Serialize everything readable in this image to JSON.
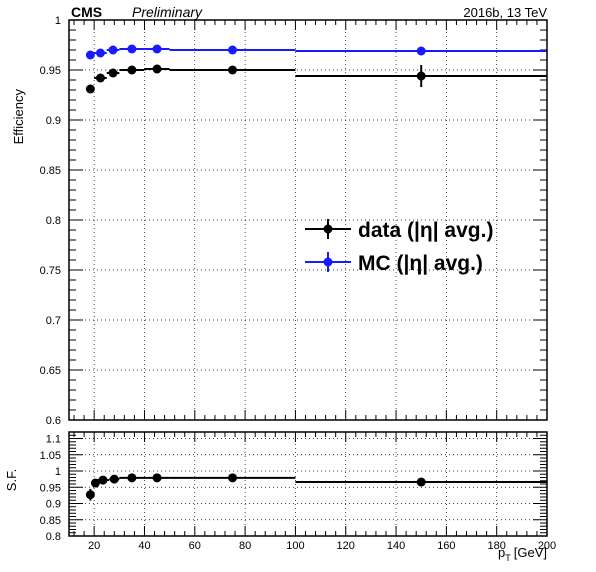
{
  "header": {
    "experiment": "CMS",
    "status": "Preliminary",
    "run_info": "2016b, 13 TeV"
  },
  "colors": {
    "data": "#000000",
    "mc": "#1a1aff",
    "grid": "#000000"
  },
  "chart_data": [
    {
      "type": "scatter",
      "panel": "top",
      "ylabel": "Efficiency",
      "xlim": [
        10,
        200
      ],
      "ylim": [
        0.6,
        1.0
      ],
      "y_ticks": [
        "0.6",
        "0.65",
        "0.7",
        "0.75",
        "0.8",
        "0.85",
        "0.9",
        "0.95",
        "1"
      ],
      "grid": true,
      "legend_position": "center-right",
      "series": [
        {
          "name": "data (|η| avg.)",
          "points": [
            {
              "x": 18.5,
              "xlo": 17,
              "xhi": 20,
              "y": 0.931,
              "yerr": 0.003
            },
            {
              "x": 22.5,
              "xlo": 20,
              "xhi": 25,
              "y": 0.942,
              "yerr": 0.003
            },
            {
              "x": 27.5,
              "xlo": 25,
              "xhi": 30,
              "y": 0.947,
              "yerr": 0.002
            },
            {
              "x": 35,
              "xlo": 30,
              "xhi": 40,
              "y": 0.95,
              "yerr": 0.002
            },
            {
              "x": 45,
              "xlo": 40,
              "xhi": 50,
              "y": 0.951,
              "yerr": 0.002
            },
            {
              "x": 75,
              "xlo": 50,
              "xhi": 100,
              "y": 0.95,
              "yerr": 0.002
            },
            {
              "x": 150,
              "xlo": 100,
              "xhi": 200,
              "y": 0.944,
              "yerr": 0.011
            }
          ]
        },
        {
          "name": "MC (|η| avg.)",
          "points": [
            {
              "x": 18.5,
              "xlo": 17,
              "xhi": 20,
              "y": 0.965,
              "yerr": 0.001
            },
            {
              "x": 22.5,
              "xlo": 20,
              "xhi": 25,
              "y": 0.967,
              "yerr": 0.001
            },
            {
              "x": 27.5,
              "xlo": 25,
              "xhi": 30,
              "y": 0.97,
              "yerr": 0.001
            },
            {
              "x": 35,
              "xlo": 30,
              "xhi": 40,
              "y": 0.971,
              "yerr": 0.001
            },
            {
              "x": 45,
              "xlo": 40,
              "xhi": 50,
              "y": 0.971,
              "yerr": 0.001
            },
            {
              "x": 75,
              "xlo": 50,
              "xhi": 100,
              "y": 0.97,
              "yerr": 0.001
            },
            {
              "x": 150,
              "xlo": 100,
              "xhi": 200,
              "y": 0.969,
              "yerr": 0.001
            }
          ]
        }
      ]
    },
    {
      "type": "scatter",
      "panel": "bottom",
      "ylabel": "S.F.",
      "xlabel_main": "p",
      "xlabel_sub": "T",
      "xlabel_unit": "[GeV]",
      "xlim": [
        10,
        200
      ],
      "ylim": [
        0.8,
        1.12
      ],
      "x_ticks": [
        "20",
        "40",
        "60",
        "80",
        "100",
        "120",
        "140",
        "160",
        "180",
        "200"
      ],
      "y_ticks": [
        "0.8",
        "0.85",
        "0.9",
        "0.95",
        "1",
        "1.05",
        "1.1"
      ],
      "grid": true,
      "series": [
        {
          "name": "",
          "points": [
            {
              "x": 18.5,
              "xlo": 17,
              "xhi": 20,
              "y": 0.927,
              "yerr": 0.018
            },
            {
              "x": 20.5,
              "xlo": 20,
              "xhi": 21,
              "y": 0.963,
              "yerr": 0.007
            },
            {
              "x": 23.5,
              "xlo": 21,
              "xhi": 26,
              "y": 0.972,
              "yerr": 0.005
            },
            {
              "x": 28,
              "xlo": 26,
              "xhi": 30,
              "y": 0.975,
              "yerr": 0.004
            },
            {
              "x": 35,
              "xlo": 30,
              "xhi": 40,
              "y": 0.979,
              "yerr": 0.003
            },
            {
              "x": 45,
              "xlo": 40,
              "xhi": 50,
              "y": 0.979,
              "yerr": 0.003
            },
            {
              "x": 75,
              "xlo": 50,
              "xhi": 100,
              "y": 0.979,
              "yerr": 0.003
            },
            {
              "x": 150,
              "xlo": 100,
              "xhi": 200,
              "y": 0.966,
              "yerr": 0.006
            }
          ]
        }
      ]
    }
  ]
}
